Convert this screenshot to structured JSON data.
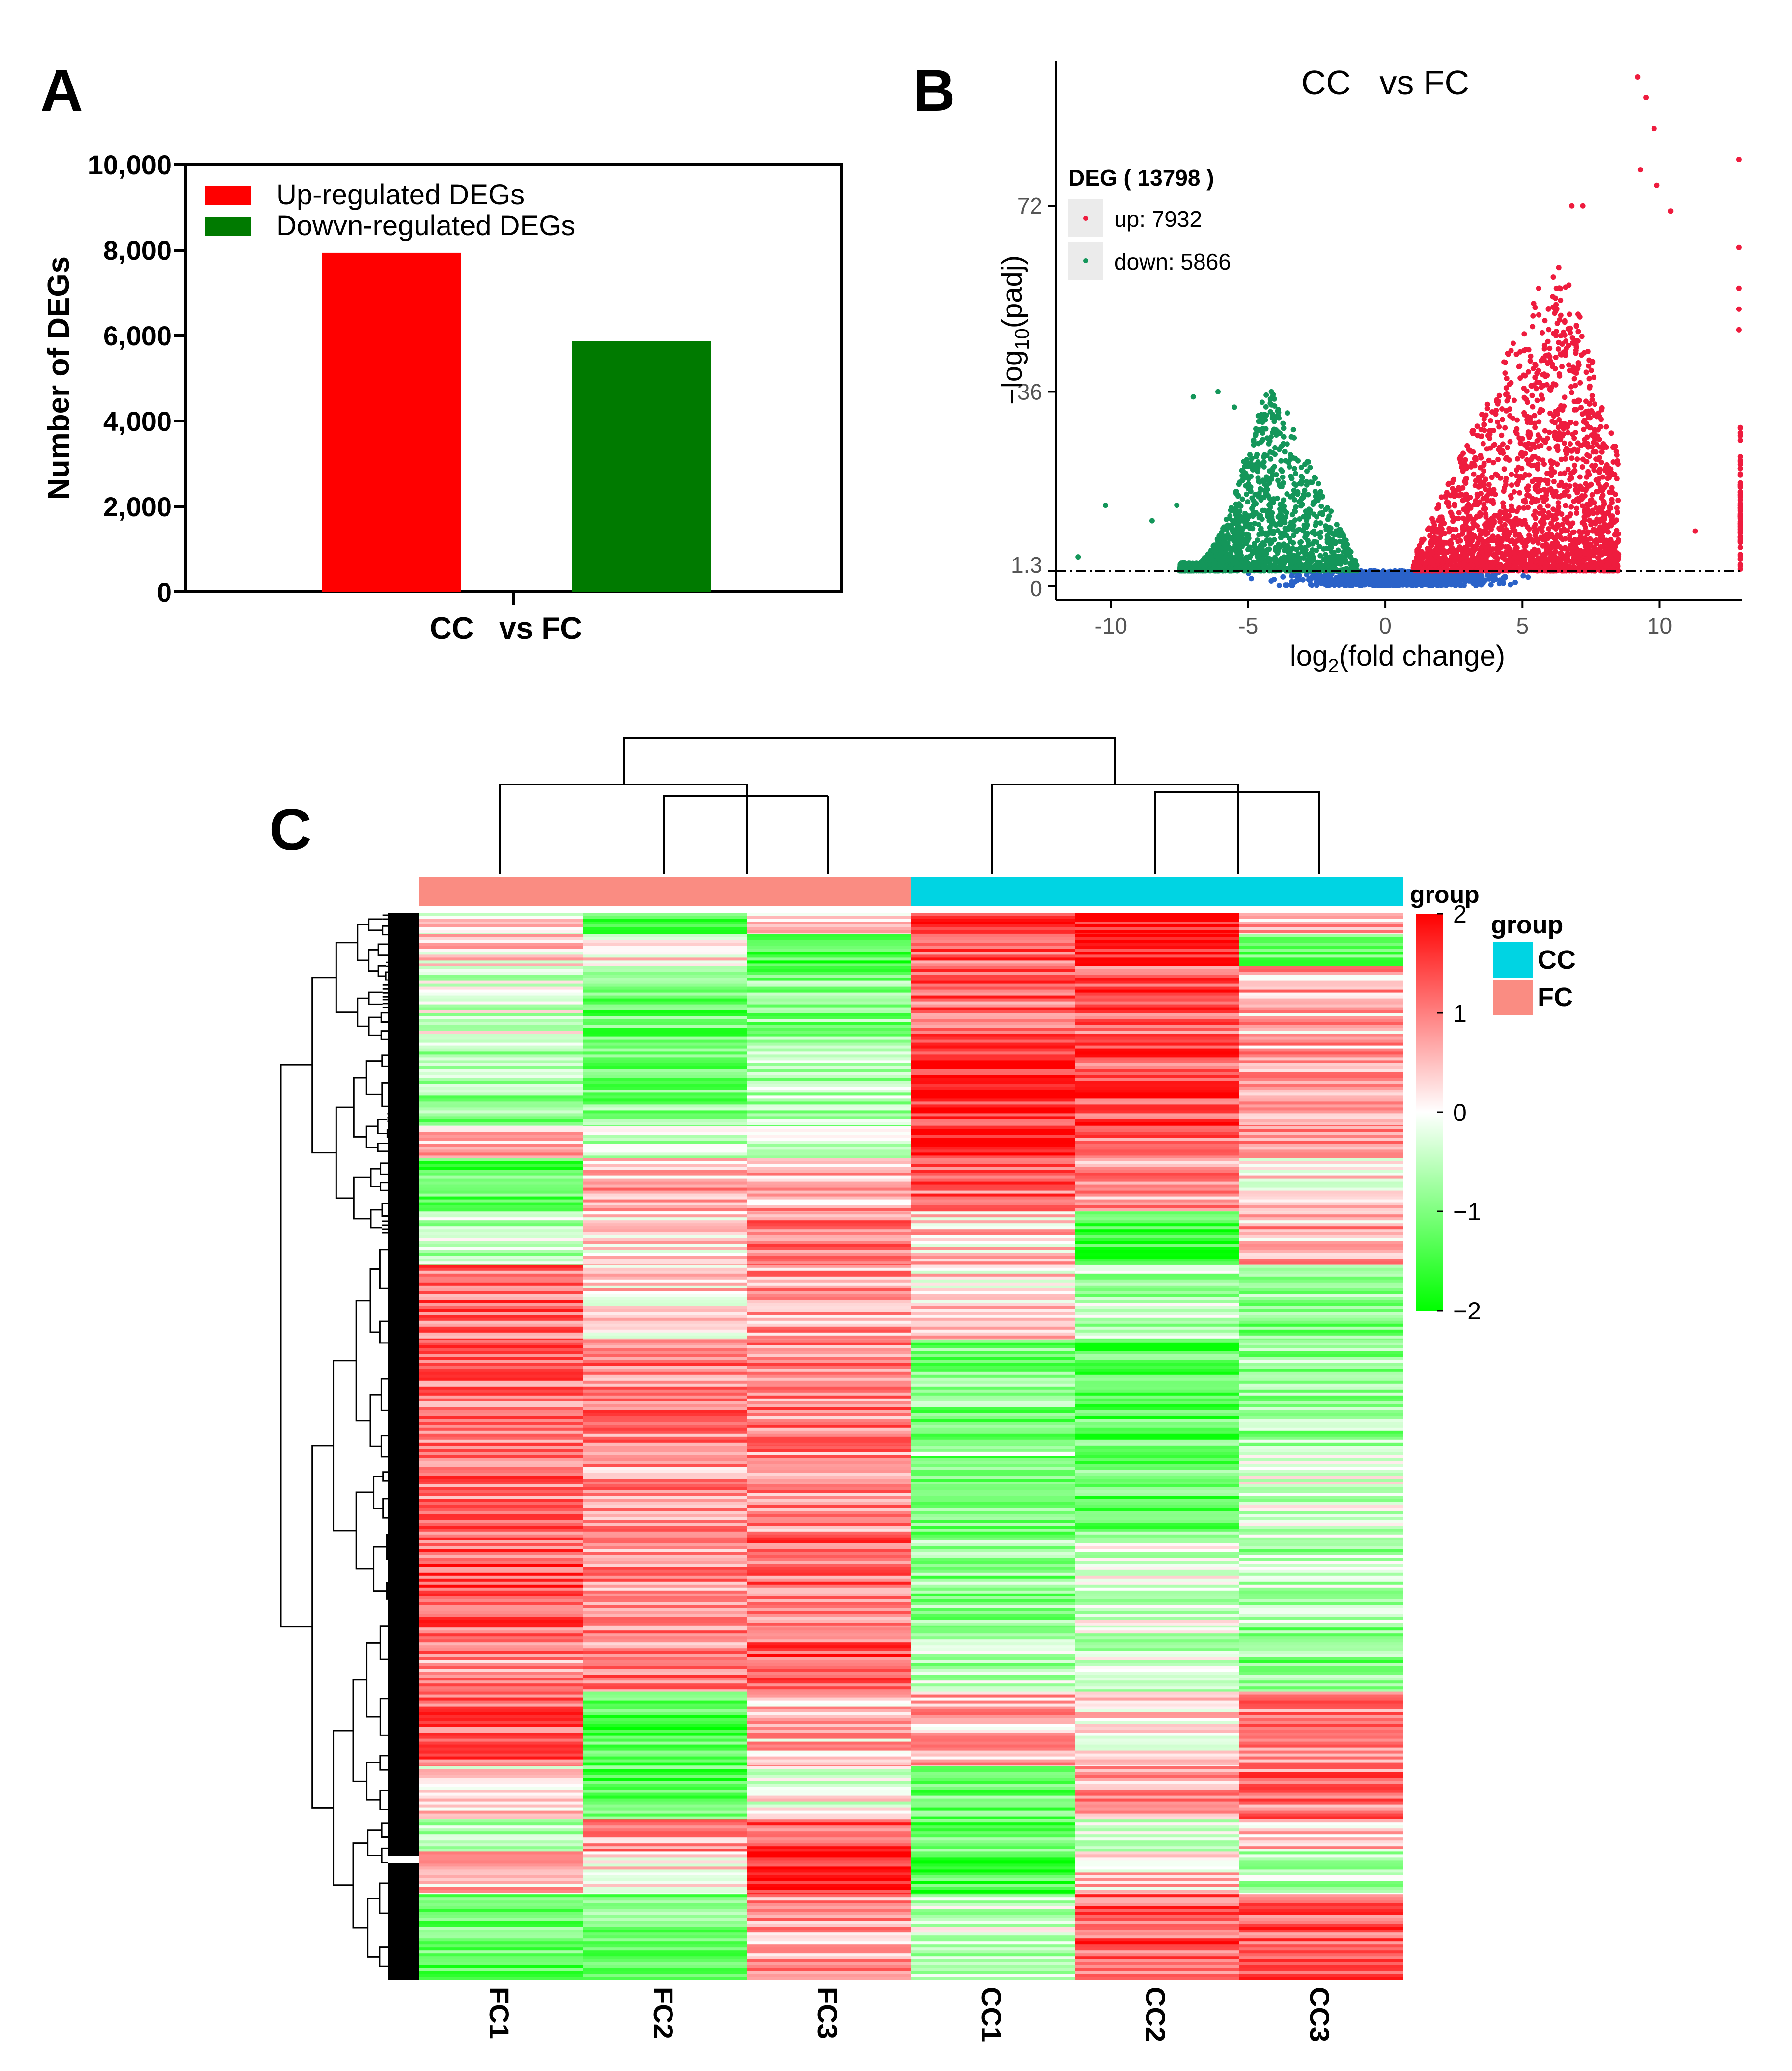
{
  "panels": {
    "A": {
      "letter": "A"
    },
    "B": {
      "letter": "B"
    },
    "C": {
      "letter": "C"
    }
  },
  "chart_data": [
    {
      "panel": "A",
      "type": "bar",
      "categories": [
        "CC   vs FC"
      ],
      "series": [
        {
          "name": "Up-regulated DEGs",
          "color": "#ff0000",
          "values": [
            7932
          ]
        },
        {
          "name": "Dowvn-regulated DEGs",
          "color": "#007a00",
          "values": [
            5866
          ]
        }
      ],
      "ylabel": "Number of DEGs",
      "xlabel": "",
      "ylim": [
        0,
        10000
      ],
      "yticks": [
        0,
        2000,
        4000,
        6000,
        8000,
        10000
      ],
      "ytick_labels": [
        "0",
        "2,000",
        "4,000",
        "6,000",
        "8,000",
        "10,000"
      ],
      "legend_position": "top-left"
    },
    {
      "panel": "B",
      "type": "scatter",
      "title": "CC   vs FC",
      "xlabel": "log2(fold change)",
      "ylabel": "-log10(padj)",
      "xlim": [
        -12,
        13
      ],
      "ylim": [
        0,
        100
      ],
      "xticks": [
        -10,
        -5,
        0,
        5,
        10
      ],
      "xtick_labels": [
        "-10",
        "-5",
        "0",
        "5",
        "10"
      ],
      "yticks": [
        0,
        1.3,
        36,
        72
      ],
      "ytick_labels": [
        "0",
        "1.3",
        "36",
        "72"
      ],
      "threshold_padj_log10": 1.3,
      "legend_title": "DEG ( 13798 )",
      "legend": [
        {
          "label": "up: 7932",
          "color": "#ee1c3e"
        },
        {
          "label": "down: 5866",
          "color": "#14965a"
        }
      ],
      "not_significant_color": "#2a62c8",
      "clouds": [
        {
          "name": "up",
          "count": 7932,
          "x_center": 5.5,
          "x_range": [
            1.0,
            13
          ],
          "peak_y": 62
        },
        {
          "name": "down",
          "count": 5866,
          "x_center": -4,
          "x_range": [
            -7.5,
            -1.0
          ],
          "peak_y": 36
        },
        {
          "name": "not significant",
          "x_range": [
            -7,
            8
          ],
          "y_max": 1.3
        }
      ],
      "outliers": [
        {
          "x": 9.2,
          "y": 97
        },
        {
          "x": 9.5,
          "y": 93
        },
        {
          "x": 9.8,
          "y": 87
        },
        {
          "x": 9.3,
          "y": 79
        },
        {
          "x": 9.9,
          "y": 76
        },
        {
          "x": 10.4,
          "y": 71
        },
        {
          "x": 12.9,
          "y": 81
        },
        {
          "x": 12.9,
          "y": 64
        },
        {
          "x": 12.9,
          "y": 56
        },
        {
          "x": 12.9,
          "y": 52
        },
        {
          "x": 12.9,
          "y": 48
        },
        {
          "x": 6.8,
          "y": 72
        },
        {
          "x": 7.2,
          "y": 72
        },
        {
          "x": -10.2,
          "y": 14
        },
        {
          "x": -11.2,
          "y": 4
        },
        {
          "x": -7.0,
          "y": 35
        },
        {
          "x": -6.1,
          "y": 36
        },
        {
          "x": -5.5,
          "y": 33
        },
        {
          "x": -8.5,
          "y": 11
        },
        {
          "x": -7.6,
          "y": 14
        },
        {
          "x": 11.3,
          "y": 9
        }
      ]
    },
    {
      "panel": "C",
      "type": "heatmap",
      "columns": [
        "FC1",
        "FC2",
        "FC3",
        "CC1",
        "CC2",
        "CC3"
      ],
      "column_groups": [
        "FC",
        "FC",
        "FC",
        "CC",
        "CC",
        "CC"
      ],
      "annotation_title": "group",
      "groups": [
        {
          "name": "CC",
          "color": "#00d4e3"
        },
        {
          "name": "FC",
          "color": "#fa8c82"
        }
      ],
      "color_scale": {
        "title": "group",
        "min": -2,
        "max": 2,
        "ticks": [
          2,
          1,
          0,
          -1,
          -2
        ],
        "tick_labels": [
          "2",
          "1",
          "0",
          "−1",
          "−2"
        ],
        "low_color": "#00ff00",
        "mid_color": "#ffffff",
        "high_color": "#ff0000"
      },
      "column_dendrogram": "((FC1,(FC2,FC3)),(CC1,(CC2,CC3)))",
      "row_blocks": [
        {
          "rows": "0-2%",
          "values": [
            0.2,
            -1.5,
            0.2,
            1.6,
            1.8,
            0.6
          ]
        },
        {
          "rows": "2-5%",
          "values": [
            0.3,
            0.2,
            -1.4,
            1.3,
            1.8,
            -1.3
          ]
        },
        {
          "rows": "5-13%",
          "values": [
            -0.3,
            -1.2,
            -1.0,
            1.2,
            1.3,
            0.6
          ]
        },
        {
          "rows": "13-20%",
          "values": [
            -0.8,
            -1.0,
            -0.6,
            1.7,
            1.4,
            0.9
          ]
        },
        {
          "rows": "20-23%",
          "values": [
            0.5,
            -0.4,
            -0.4,
            1.9,
            1.2,
            0.8
          ]
        },
        {
          "rows": "23-28%",
          "values": [
            -1.4,
            0.6,
            0.6,
            1.2,
            0.8,
            0.2
          ]
        },
        {
          "rows": "28-33%",
          "values": [
            -0.6,
            0.4,
            1.1,
            0.4,
            -1.6,
            0.6
          ]
        },
        {
          "rows": "33-40%",
          "values": [
            1.2,
            0.3,
            0.8,
            0.3,
            -0.6,
            -0.9
          ]
        },
        {
          "rows": "40-50%",
          "values": [
            1.1,
            1.0,
            1.0,
            -1.0,
            -1.3,
            -0.8
          ]
        },
        {
          "rows": "50-58%",
          "values": [
            1.1,
            0.8,
            0.9,
            -1.2,
            -1.2,
            -0.3
          ]
        },
        {
          "rows": "58-67%",
          "values": [
            1.3,
            0.9,
            1.1,
            -0.9,
            -0.3,
            -0.6
          ]
        },
        {
          "rows": "67-73%",
          "values": [
            0.9,
            1.0,
            1.3,
            -0.6,
            -0.4,
            -1.0
          ]
        },
        {
          "rows": "73-80%",
          "values": [
            1.2,
            -1.4,
            0.5,
            0.6,
            0.3,
            1.0
          ]
        },
        {
          "rows": "80-85%",
          "values": [
            0.2,
            -1.3,
            0.0,
            -1.1,
            0.7,
            1.1
          ]
        },
        {
          "rows": "85-88%",
          "values": [
            -0.6,
            0.8,
            1.4,
            -1.2,
            -0.5,
            0.4
          ]
        },
        {
          "rows": "88-92%",
          "values": [
            0.5,
            0.3,
            1.9,
            -1.5,
            0.4,
            -0.5
          ]
        },
        {
          "rows": "92-100%",
          "values": [
            -1.2,
            -1.1,
            0.7,
            -0.4,
            1.3,
            1.2
          ]
        }
      ]
    }
  ]
}
